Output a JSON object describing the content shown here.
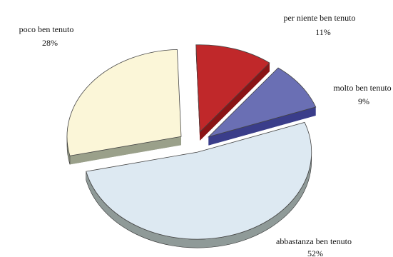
{
  "chart_data": {
    "type": "pie",
    "style": "3d-exploded",
    "title": "",
    "slices": [
      {
        "label": "per niente ben tenuto",
        "value": 11,
        "value_label": "11%",
        "color": "#c0282a",
        "side_color": "#8a1416"
      },
      {
        "label": "molto ben tenuto",
        "value": 9,
        "value_label": "9%",
        "color": "#6a6fb4",
        "side_color": "#3a3d8a"
      },
      {
        "label": "abbastanza ben tenuto",
        "value": 52,
        "value_label": "52%",
        "color": "#dde9f2",
        "side_color": "#8f9a98"
      },
      {
        "label": "poco ben tenuto",
        "value": 28,
        "value_label": "28%",
        "color": "#fbf6d8",
        "side_color": "#9aa08a"
      }
    ],
    "legend": "none"
  }
}
